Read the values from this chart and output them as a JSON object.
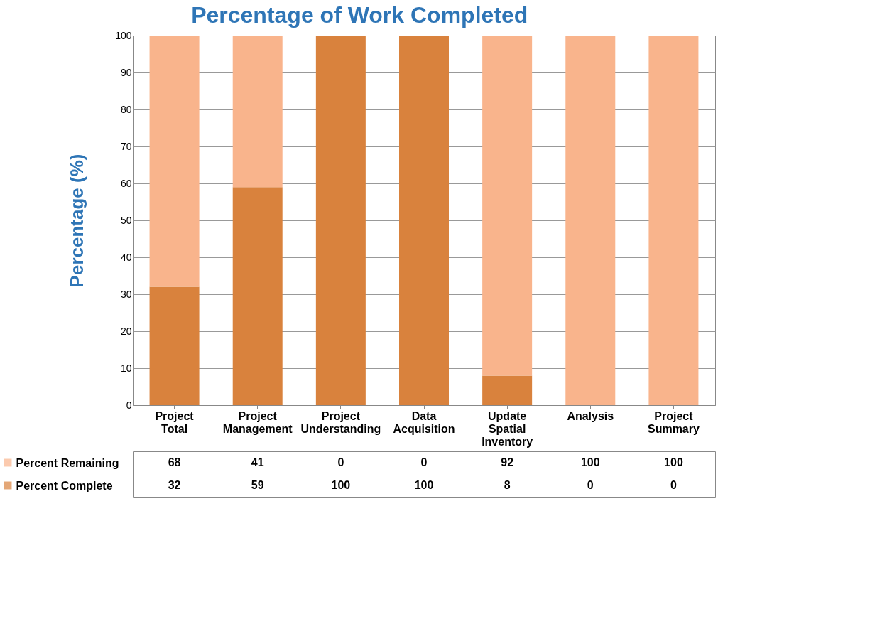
{
  "chart_data": {
    "type": "bar",
    "stacked": true,
    "title": "Percentage of Work Completed",
    "ylabel": "Percentage (%)",
    "categories": [
      "Project Total",
      "Project Management",
      "Project Understanding",
      "Data Acquisition",
      "Update Spatial Inventory",
      "Analysis",
      "Project Summary"
    ],
    "series": [
      {
        "name": "Percent Complete",
        "color": "#d9823d",
        "values": [
          32,
          59,
          100,
          100,
          8,
          0,
          0
        ]
      },
      {
        "name": "Percent Remaining",
        "color": "#f9b48c",
        "values": [
          68,
          41,
          0,
          0,
          92,
          100,
          100
        ]
      }
    ],
    "ylim": [
      0,
      100
    ],
    "yticks": [
      0,
      10,
      20,
      30,
      40,
      50,
      60,
      70,
      80,
      90,
      100
    ],
    "grid": "y",
    "legend": "bottom",
    "data_labels": true
  }
}
